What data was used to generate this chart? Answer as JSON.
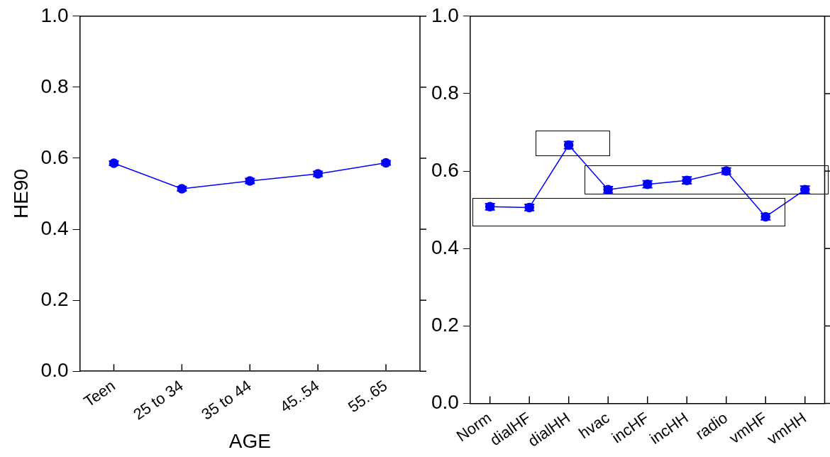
{
  "chart_data": [
    {
      "type": "line",
      "xlabel": "AGE",
      "ylabel": "HE90",
      "categories": [
        "Teen",
        "25 to 34",
        "35 to 44",
        "45..54",
        "55..65"
      ],
      "series": [
        {
          "color": "#0000ff",
          "values": [
            0.586,
            0.514,
            0.536,
            0.556,
            0.587
          ],
          "errors": [
            0.006,
            0.006,
            0.007,
            0.007,
            0.006
          ]
        }
      ],
      "ylim": [
        0,
        1
      ],
      "yticks": [
        {
          "value": 0,
          "label": "0.0"
        },
        {
          "value": 0.2,
          "label": "0.2"
        },
        {
          "value": 0.4,
          "label": "0.4"
        },
        {
          "value": 0.6,
          "label": "0.6"
        },
        {
          "value": 0.8,
          "label": "0.8"
        },
        {
          "value": 1,
          "label": "1.0"
        }
      ],
      "grid": false,
      "legend": false,
      "marker": "circle",
      "line_style": "solid"
    },
    {
      "type": "line",
      "categories": [
        "Norm",
        "dialHF",
        "dialHH",
        "hvac",
        "incHF",
        "incHH",
        "radio",
        "vmHF",
        "vmHH"
      ],
      "series": [
        {
          "color": "#0000ff",
          "values": [
            0.508,
            0.506,
            0.667,
            0.552,
            0.566,
            0.576,
            0.6,
            0.482,
            0.552
          ],
          "errors": [
            0.008,
            0.008,
            0.009,
            0.008,
            0.009,
            0.009,
            0.008,
            0.008,
            0.009
          ]
        }
      ],
      "ylim": [
        0,
        1
      ],
      "yticks": [
        {
          "value": 0,
          "label": "0.0"
        },
        {
          "value": 0.2,
          "label": "0.2"
        },
        {
          "value": 0.4,
          "label": "0.4"
        },
        {
          "value": 0.6,
          "label": "0.6"
        },
        {
          "value": 0.8,
          "label": "0.8"
        },
        {
          "value": 1,
          "label": "1.0"
        }
      ],
      "grid": false,
      "legend": false,
      "marker": "circle",
      "line_style": "solid"
    }
  ]
}
